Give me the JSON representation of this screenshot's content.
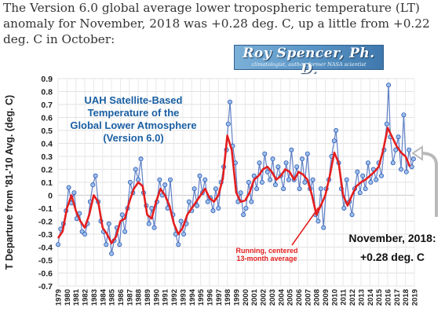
{
  "intro_text": "The Version 6.0 global average lower tropospheric temperature (LT) anomaly for November, 2018 was +0.28 deg. C, up a little from +0.22 deg. C in October:",
  "banner": {
    "name": "Roy Spencer, Ph. D.",
    "subtitle": "climatologist, author, former NASA scientist"
  },
  "chart_data": {
    "type": "line",
    "title": [
      "UAH Satellite-Based",
      "Temperature of the",
      "Global Lower Atmosphere",
      "(Version 6.0)"
    ],
    "ylabel": "T Departure from '81-'10 Avg. (deg. C)",
    "ylim": [
      -0.7,
      0.9
    ],
    "yticks": [
      "0.9",
      "0.8",
      "0.7",
      "0.6",
      "0.5",
      "0.4",
      "0.3",
      "0.2",
      "0.1",
      "0",
      "-0.1",
      "-0.2",
      "-0.3",
      "-0.4",
      "-0.5",
      "-0.6",
      "-0.7"
    ],
    "xlim": [
      1979,
      2019
    ],
    "xticks": [
      "1979",
      "1980",
      "1981",
      "1982",
      "1983",
      "1984",
      "1985",
      "1986",
      "1987",
      "1988",
      "1989",
      "1990",
      "1991",
      "1992",
      "1993",
      "1994",
      "1995",
      "1996",
      "1997",
      "1998",
      "1999",
      "2000",
      "2001",
      "2002",
      "2003",
      "2004",
      "2005",
      "2006",
      "2007",
      "2008",
      "2009",
      "2010",
      "2011",
      "2012",
      "2013",
      "2014",
      "2015",
      "2016",
      "2017",
      "2018",
      "2019"
    ],
    "grid": true,
    "series": [
      {
        "name": "Running, centered 13-month average",
        "color": "#e41e1e",
        "x": [
          1979.0,
          1979.5,
          1980.0,
          1980.5,
          1981.0,
          1981.5,
          1982.0,
          1982.5,
          1983.0,
          1983.5,
          1984.0,
          1984.5,
          1985.0,
          1985.5,
          1986.0,
          1986.5,
          1987.0,
          1987.5,
          1988.0,
          1988.5,
          1989.0,
          1989.5,
          1990.0,
          1990.5,
          1991.0,
          1991.5,
          1992.0,
          1992.5,
          1993.0,
          1993.5,
          1994.0,
          1994.5,
          1995.0,
          1995.5,
          1996.0,
          1996.5,
          1997.0,
          1997.5,
          1998.0,
          1998.5,
          1999.0,
          1999.5,
          2000.0,
          2000.5,
          2001.0,
          2001.5,
          2002.0,
          2002.5,
          2003.0,
          2003.5,
          2004.0,
          2004.5,
          2005.0,
          2005.5,
          2006.0,
          2006.5,
          2007.0,
          2007.5,
          2008.0,
          2008.5,
          2009.0,
          2009.5,
          2010.0,
          2010.5,
          2011.0,
          2011.5,
          2012.0,
          2012.5,
          2013.0,
          2013.5,
          2014.0,
          2014.5,
          2015.0,
          2015.5,
          2016.0,
          2016.5,
          2017.0,
          2017.5,
          2018.0,
          2018.5
        ],
        "y": [
          -0.33,
          -0.28,
          -0.1,
          0.0,
          -0.12,
          -0.2,
          -0.25,
          -0.15,
          0.0,
          -0.05,
          -0.25,
          -0.3,
          -0.37,
          -0.32,
          -0.2,
          -0.18,
          -0.05,
          0.05,
          0.1,
          0.07,
          -0.15,
          -0.18,
          -0.05,
          0.05,
          0.0,
          -0.08,
          -0.22,
          -0.3,
          -0.25,
          -0.15,
          -0.1,
          -0.05,
          0.0,
          0.05,
          -0.02,
          -0.05,
          0.0,
          0.13,
          0.46,
          0.35,
          0.02,
          -0.05,
          -0.04,
          0.02,
          0.12,
          0.15,
          0.2,
          0.22,
          0.18,
          0.12,
          0.15,
          0.2,
          0.18,
          0.12,
          0.18,
          0.16,
          0.12,
          0.0,
          -0.15,
          -0.08,
          0.0,
          0.15,
          0.33,
          0.25,
          0.0,
          -0.08,
          0.0,
          0.07,
          0.1,
          0.12,
          0.15,
          0.18,
          0.22,
          0.35,
          0.52,
          0.45,
          0.38,
          0.33,
          0.3,
          0.22
        ]
      },
      {
        "name": "",
        "color": "#2c57b4",
        "x": [
          1979.0,
          1979.3,
          1979.6,
          1979.9,
          1980.2,
          1980.5,
          1980.8,
          1981.1,
          1981.4,
          1981.7,
          1982.0,
          1982.3,
          1982.6,
          1982.9,
          1983.2,
          1983.5,
          1983.8,
          1984.1,
          1984.4,
          1984.7,
          1985.0,
          1985.3,
          1985.6,
          1985.9,
          1986.2,
          1986.5,
          1986.8,
          1987.1,
          1987.4,
          1987.7,
          1988.0,
          1988.3,
          1988.6,
          1988.9,
          1989.2,
          1989.5,
          1989.8,
          1990.1,
          1990.4,
          1990.7,
          1991.0,
          1991.3,
          1991.6,
          1991.9,
          1992.2,
          1992.5,
          1992.8,
          1993.1,
          1993.4,
          1993.7,
          1994.0,
          1994.3,
          1994.6,
          1994.9,
          1995.2,
          1995.5,
          1995.8,
          1996.1,
          1996.4,
          1996.7,
          1997.0,
          1997.3,
          1997.6,
          1997.9,
          1998.1,
          1998.3,
          1998.6,
          1998.9,
          1999.2,
          1999.5,
          1999.8,
          2000.1,
          2000.4,
          2000.7,
          2001.0,
          2001.3,
          2001.6,
          2001.9,
          2002.2,
          2002.5,
          2002.8,
          2003.1,
          2003.4,
          2003.7,
          2004.0,
          2004.3,
          2004.6,
          2004.9,
          2005.2,
          2005.5,
          2005.8,
          2006.1,
          2006.4,
          2006.7,
          2007.0,
          2007.3,
          2007.6,
          2007.9,
          2008.2,
          2008.5,
          2008.8,
          2009.1,
          2009.4,
          2009.7,
          2010.0,
          2010.2,
          2010.5,
          2010.8,
          2011.1,
          2011.4,
          2011.7,
          2012.0,
          2012.3,
          2012.6,
          2012.9,
          2013.2,
          2013.5,
          2013.8,
          2014.1,
          2014.4,
          2014.7,
          2015.0,
          2015.3,
          2015.6,
          2015.9,
          2016.1,
          2016.3,
          2016.6,
          2016.9,
          2017.2,
          2017.5,
          2017.8,
          2018.1,
          2018.4,
          2018.7,
          2018.9
        ],
        "y": [
          -0.38,
          -0.26,
          -0.22,
          -0.12,
          0.06,
          -0.06,
          0.02,
          -0.18,
          -0.14,
          -0.28,
          -0.3,
          -0.22,
          -0.05,
          0.08,
          0.15,
          -0.05,
          -0.2,
          -0.28,
          -0.38,
          -0.22,
          -0.45,
          -0.35,
          -0.25,
          -0.38,
          -0.15,
          -0.28,
          -0.1,
          0.1,
          0.02,
          0.2,
          0.12,
          0.28,
          0.02,
          -0.08,
          -0.22,
          -0.1,
          -0.25,
          -0.05,
          0.12,
          0.0,
          0.08,
          -0.1,
          0.12,
          -0.15,
          -0.3,
          -0.38,
          -0.2,
          -0.3,
          -0.22,
          -0.05,
          -0.12,
          0.05,
          -0.08,
          0.15,
          0.02,
          0.12,
          -0.05,
          -0.02,
          -0.12,
          0.05,
          -0.1,
          0.1,
          0.22,
          0.35,
          0.55,
          0.72,
          0.38,
          0.25,
          -0.05,
          0.02,
          -0.15,
          -0.1,
          0.1,
          -0.05,
          0.15,
          0.05,
          0.25,
          0.1,
          0.32,
          0.18,
          0.12,
          0.28,
          0.08,
          0.22,
          0.15,
          0.05,
          0.25,
          0.12,
          0.35,
          0.12,
          0.22,
          0.05,
          0.28,
          0.1,
          0.32,
          0.05,
          0.12,
          -0.15,
          -0.2,
          0.05,
          -0.25,
          0.05,
          0.12,
          0.3,
          0.42,
          0.5,
          0.25,
          0.05,
          -0.1,
          0.12,
          -0.05,
          -0.15,
          0.05,
          0.18,
          0.02,
          0.15,
          0.05,
          0.25,
          0.1,
          0.2,
          0.12,
          0.25,
          0.15,
          0.35,
          0.55,
          0.85,
          0.45,
          0.25,
          0.35,
          0.45,
          0.2,
          0.62,
          0.18,
          0.35,
          0.22,
          0.28
        ]
      }
    ],
    "annotations": {
      "running_label": [
        "Running, centered",
        "13-month average"
      ],
      "callout": [
        "November, 2018:",
        "+0.28 deg. C"
      ]
    }
  }
}
